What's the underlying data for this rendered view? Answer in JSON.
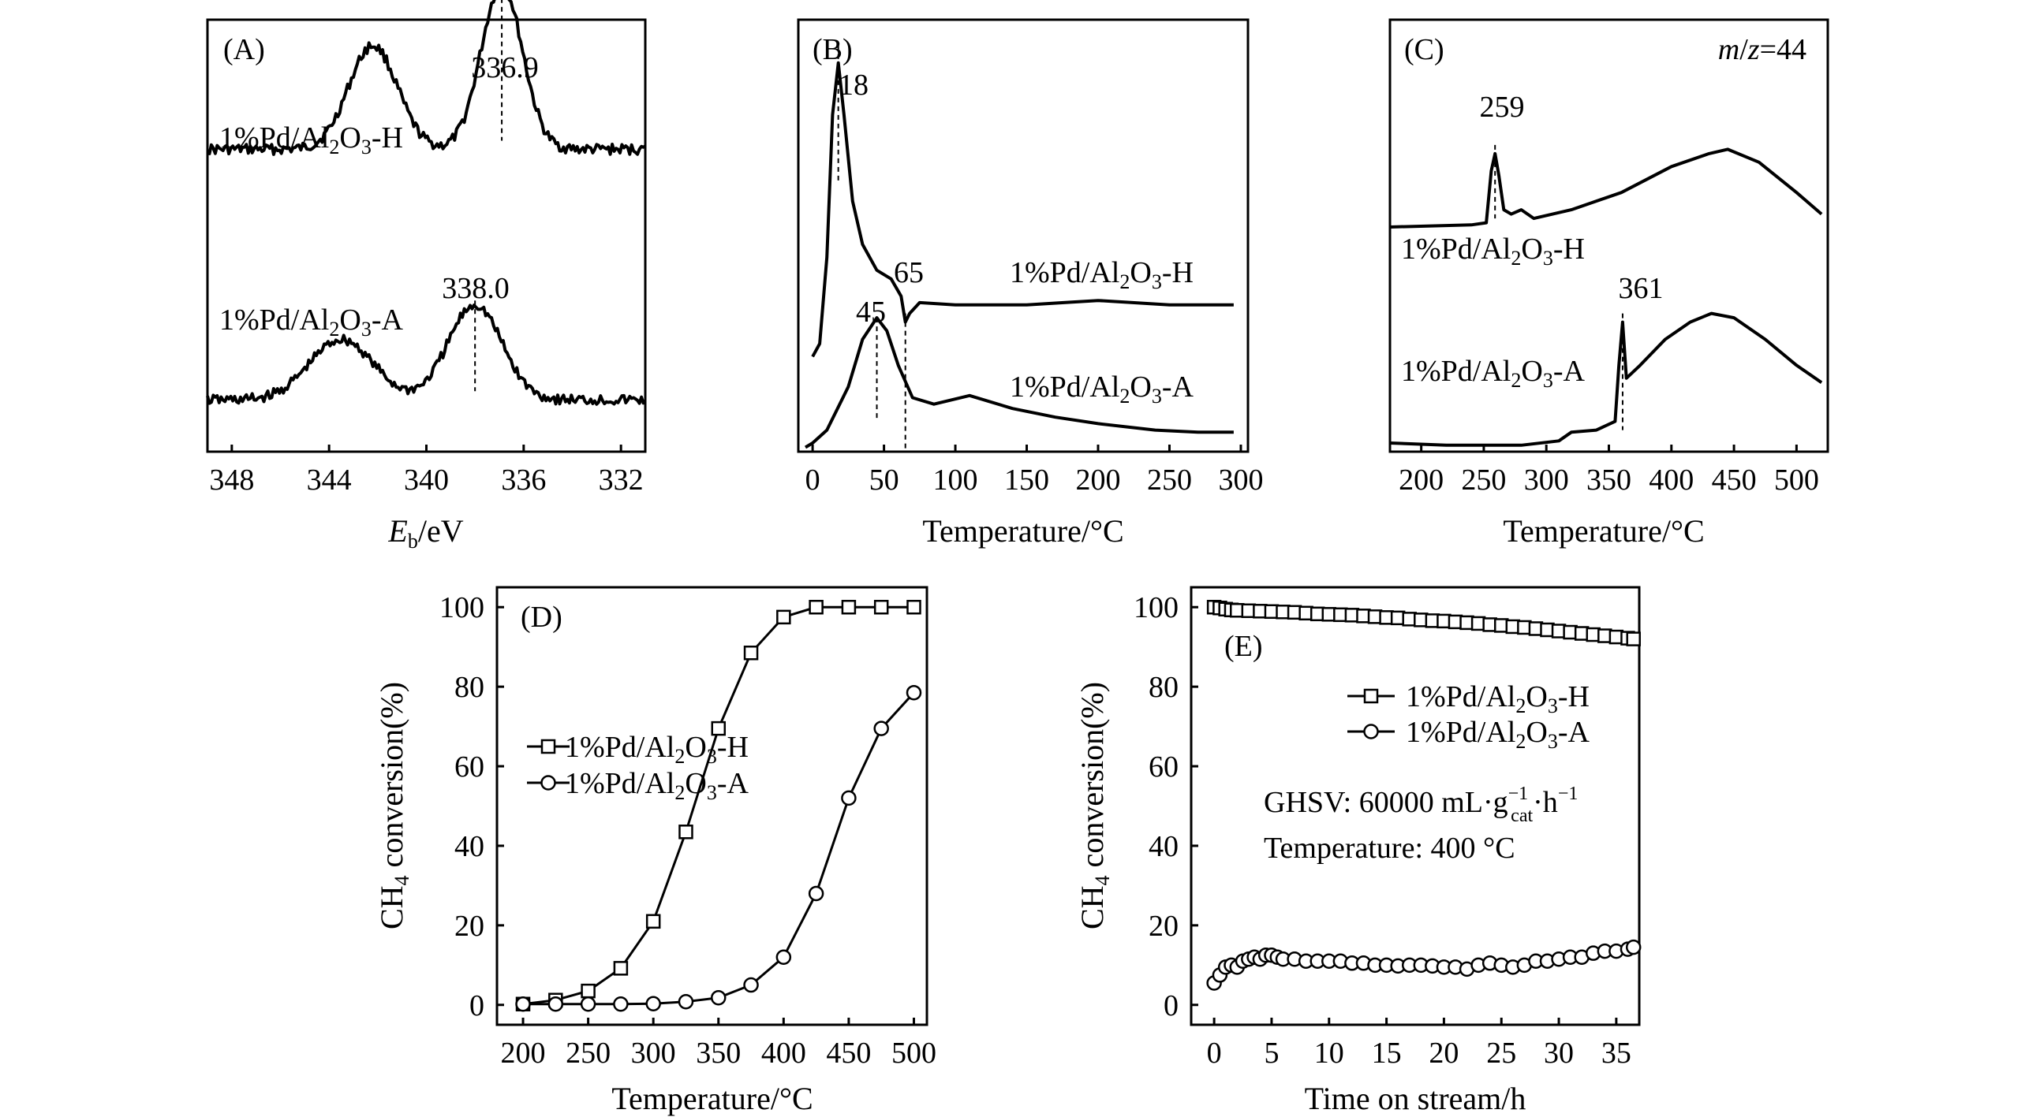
{
  "chart_data": [
    {
      "panel": "A",
      "type": "line",
      "label": "(A)",
      "xlabel_main": "E",
      "xlabel_sub": "b",
      "xlabel_unit": "/eV",
      "xlim": [
        349,
        331
      ],
      "x_ticks": [
        348,
        344,
        340,
        336,
        332
      ],
      "series": [
        {
          "name": "1%Pd/Al2O3-H",
          "label_main": "1%Pd/Al",
          "label_sub1": "2",
          "label_mid": "O",
          "label_sub2": "3",
          "label_end": "-H",
          "baseline": 0.3,
          "noise": 0.012,
          "peaks": [
            {
              "center": 342.2,
              "height": 0.24,
              "width": 1.0
            },
            {
              "center": 336.9,
              "height": 0.38,
              "width": 0.85
            }
          ],
          "peak_label": "336.9"
        },
        {
          "name": "1%Pd/Al2O3-A",
          "label_main": "1%Pd/Al",
          "label_sub1": "2",
          "label_mid": "O",
          "label_sub2": "3",
          "label_end": "-A",
          "baseline": 0.88,
          "noise": 0.012,
          "peaks": [
            {
              "center": 343.5,
              "height": 0.14,
              "width": 1.3
            },
            {
              "center": 338.0,
              "height": 0.22,
              "width": 1.1
            }
          ],
          "peak_label": "338.0"
        }
      ]
    },
    {
      "panel": "B",
      "type": "line",
      "label": "(B)",
      "xlabel": "Temperature/°C",
      "xlim": [
        -10,
        305
      ],
      "x_ticks": [
        0,
        50,
        100,
        150,
        200,
        250,
        300
      ],
      "series": [
        {
          "name": "1%Pd/Al2O3-H",
          "label_main": "1%Pd/Al",
          "label_sub1": "2",
          "label_mid": "O",
          "label_sub2": "3",
          "label_end": "-H",
          "points": [
            [
              0,
              0.78
            ],
            [
              5,
              0.75
            ],
            [
              10,
              0.55
            ],
            [
              14,
              0.22
            ],
            [
              18,
              0.1
            ],
            [
              22,
              0.22
            ],
            [
              28,
              0.42
            ],
            [
              35,
              0.52
            ],
            [
              45,
              0.58
            ],
            [
              55,
              0.6
            ],
            [
              62,
              0.64
            ],
            [
              65,
              0.7
            ],
            [
              68,
              0.68
            ],
            [
              75,
              0.655
            ],
            [
              100,
              0.66
            ],
            [
              150,
              0.66
            ],
            [
              200,
              0.65
            ],
            [
              250,
              0.66
            ],
            [
              295,
              0.66
            ]
          ],
          "peak_labels": [
            "18",
            "65"
          ]
        },
        {
          "name": "1%Pd/Al2O3-A",
          "label_main": "1%Pd/Al",
          "label_sub1": "2",
          "label_mid": "O",
          "label_sub2": "3",
          "label_end": "-A",
          "points": [
            [
              -5,
              0.99
            ],
            [
              0,
              0.98
            ],
            [
              10,
              0.95
            ],
            [
              25,
              0.85
            ],
            [
              35,
              0.74
            ],
            [
              45,
              0.69
            ],
            [
              52,
              0.72
            ],
            [
              60,
              0.8
            ],
            [
              70,
              0.875
            ],
            [
              85,
              0.89
            ],
            [
              110,
              0.87
            ],
            [
              140,
              0.9
            ],
            [
              170,
              0.92
            ],
            [
              200,
              0.935
            ],
            [
              240,
              0.95
            ],
            [
              270,
              0.955
            ],
            [
              295,
              0.955
            ]
          ],
          "peak_labels": [
            "45"
          ]
        }
      ]
    },
    {
      "panel": "C",
      "type": "line",
      "label": "(C)",
      "annotation_i": "m",
      "annotation_mid": "/",
      "annotation_i2": "z",
      "annotation_end": "=44",
      "xlabel": "Temperature/°C",
      "xlim": [
        175,
        525
      ],
      "x_ticks": [
        200,
        250,
        300,
        350,
        400,
        450,
        500
      ],
      "series": [
        {
          "name": "1%Pd/Al2O3-H",
          "label_main": "1%Pd/Al",
          "label_sub1": "2",
          "label_mid": "O",
          "label_sub2": "3",
          "label_end": "-H",
          "points": [
            [
              175,
              0.48
            ],
            [
              240,
              0.475
            ],
            [
              252,
              0.47
            ],
            [
              256,
              0.35
            ],
            [
              259,
              0.31
            ],
            [
              262,
              0.36
            ],
            [
              266,
              0.44
            ],
            [
              272,
              0.45
            ],
            [
              280,
              0.44
            ],
            [
              290,
              0.46
            ],
            [
              320,
              0.44
            ],
            [
              360,
              0.4
            ],
            [
              400,
              0.34
            ],
            [
              430,
              0.31
            ],
            [
              445,
              0.3
            ],
            [
              470,
              0.33
            ],
            [
              500,
              0.4
            ],
            [
              520,
              0.45
            ]
          ],
          "peak_labels": [
            "259"
          ]
        },
        {
          "name": "1%Pd/Al2O3-A",
          "label_main": "1%Pd/Al",
          "label_sub1": "2",
          "label_mid": "O",
          "label_sub2": "3",
          "label_end": "-A",
          "points": [
            [
              175,
              0.98
            ],
            [
              220,
              0.985
            ],
            [
              280,
              0.985
            ],
            [
              310,
              0.975
            ],
            [
              320,
              0.955
            ],
            [
              340,
              0.95
            ],
            [
              355,
              0.93
            ],
            [
              358,
              0.8
            ],
            [
              361,
              0.7
            ],
            [
              364,
              0.83
            ],
            [
              375,
              0.8
            ],
            [
              395,
              0.74
            ],
            [
              415,
              0.7
            ],
            [
              432,
              0.68
            ],
            [
              450,
              0.69
            ],
            [
              475,
              0.74
            ],
            [
              500,
              0.8
            ],
            [
              520,
              0.84
            ]
          ],
          "peak_labels": [
            "361"
          ]
        }
      ]
    },
    {
      "panel": "D",
      "type": "line",
      "label": "(D)",
      "xlabel": "Temperature/°C",
      "ylabel_main": "CH",
      "ylabel_sub": "4",
      "ylabel_end": " conversion(%)",
      "xlim": [
        180,
        510
      ],
      "ylim": [
        -5,
        105
      ],
      "x_ticks": [
        200,
        250,
        300,
        350,
        400,
        450,
        500
      ],
      "y_ticks": [
        0,
        20,
        40,
        60,
        80,
        100
      ],
      "legend": "center-left",
      "series": [
        {
          "name": "1%Pd/Al2O3-H",
          "marker": "square",
          "label_main": "1%Pd/Al",
          "label_sub1": "2",
          "label_mid": "O",
          "label_sub2": "3",
          "label_end": "-H",
          "x": [
            200,
            225,
            250,
            275,
            300,
            325,
            350,
            375,
            400,
            425,
            450,
            475,
            500
          ],
          "y": [
            0.2,
            1.2,
            3.5,
            9.2,
            21,
            43.5,
            69.5,
            88.5,
            97.5,
            100,
            100,
            100,
            100
          ]
        },
        {
          "name": "1%Pd/Al2O3-A",
          "marker": "circle",
          "label_main": "1%Pd/Al",
          "label_sub1": "2",
          "label_mid": "O",
          "label_sub2": "3",
          "label_end": "-A",
          "x": [
            200,
            225,
            250,
            275,
            300,
            325,
            350,
            375,
            400,
            425,
            450,
            475,
            500
          ],
          "y": [
            0.2,
            0.2,
            0.2,
            0.2,
            0.3,
            0.8,
            1.8,
            5,
            12,
            28,
            52,
            69.5,
            78.5
          ]
        }
      ]
    },
    {
      "panel": "E",
      "type": "line",
      "label": "(E)",
      "xlabel": "Time on stream/h",
      "ylabel_main": "CH",
      "ylabel_sub": "4",
      "ylabel_end": " conversion(%)",
      "xlim": [
        -2,
        37
      ],
      "ylim": [
        -5,
        105
      ],
      "x_ticks": [
        0,
        5,
        10,
        15,
        20,
        25,
        30,
        35
      ],
      "y_ticks": [
        0,
        20,
        40,
        60,
        80,
        100
      ],
      "legend": "top-right",
      "note_gh": "GHSV: 60000 mL·g",
      "note_gh_sup": "−1",
      "note_gh_sub": "cat",
      "note_gh_mid": "·h",
      "note_gh_sup2": "−1",
      "note_temp": "Temperature: 400 °C",
      "series": [
        {
          "name": "1%Pd/Al2O3-H",
          "marker": "square",
          "label_main": "1%Pd/Al",
          "label_sub1": "2",
          "label_mid": "O",
          "label_sub2": "3",
          "label_end": "-H",
          "x": [
            0,
            0.5,
            1,
            1.5,
            2,
            3,
            4,
            5,
            6,
            7,
            8,
            9,
            10,
            11,
            12,
            13,
            14,
            15,
            16,
            17,
            18,
            19,
            20,
            21,
            22,
            23,
            24,
            25,
            26,
            27,
            28,
            29,
            30,
            31,
            32,
            33,
            34,
            35,
            36,
            36.5
          ],
          "y": [
            100,
            99.8,
            99.5,
            99.3,
            99.2,
            99.1,
            99,
            98.9,
            98.8,
            98.7,
            98.5,
            98.3,
            98.2,
            98.1,
            98,
            97.8,
            97.6,
            97.4,
            97.3,
            97,
            96.8,
            96.6,
            96.5,
            96.3,
            96.1,
            95.9,
            95.6,
            95.4,
            95.1,
            94.9,
            94.6,
            94.3,
            94,
            93.7,
            93.4,
            93.1,
            92.8,
            92.5,
            92.2,
            92
          ]
        },
        {
          "name": "1%Pd/Al2O3-A",
          "marker": "circle",
          "label_main": "1%Pd/Al",
          "label_sub1": "2",
          "label_mid": "O",
          "label_sub2": "3",
          "label_end": "-A",
          "x": [
            0,
            0.5,
            1,
            1.5,
            2,
            2.5,
            3,
            3.5,
            4,
            4.5,
            5,
            5.5,
            6,
            7,
            8,
            9,
            10,
            11,
            12,
            13,
            14,
            15,
            16,
            17,
            18,
            19,
            20,
            21,
            22,
            23,
            24,
            25,
            26,
            27,
            28,
            29,
            30,
            31,
            32,
            33,
            34,
            35,
            36,
            36.5
          ],
          "y": [
            5.5,
            7.5,
            9.5,
            10,
            9.5,
            11,
            11.5,
            12,
            11.5,
            12.5,
            12.5,
            12,
            11.5,
            11.5,
            11,
            11,
            11,
            11,
            10.5,
            10.5,
            10,
            10,
            9.8,
            10,
            10,
            9.8,
            9.5,
            9.5,
            9,
            10,
            10.5,
            10,
            9.5,
            10,
            11,
            11,
            11.5,
            12,
            12,
            13,
            13.5,
            13.5,
            14,
            14.5
          ]
        }
      ]
    }
  ]
}
